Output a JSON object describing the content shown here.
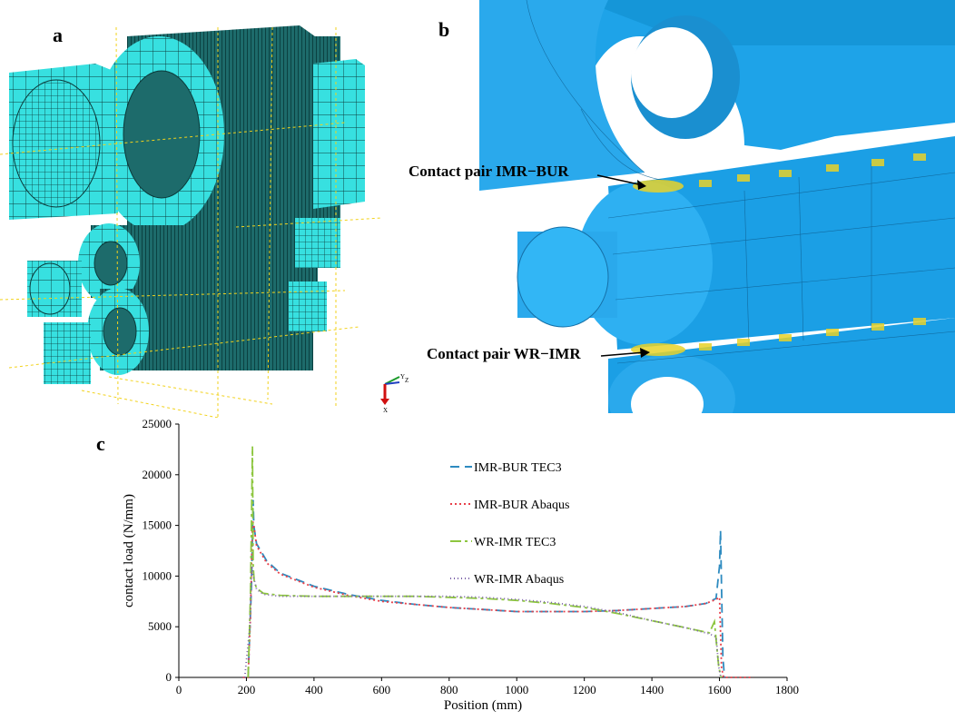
{
  "panels": {
    "a": {
      "label": "a"
    },
    "b": {
      "label": "b",
      "annotations": [
        "Contact pair IMR−BUR",
        "Contact pair WR−IMR"
      ]
    },
    "c": {
      "label": "c"
    }
  },
  "triad": {
    "y": "Y",
    "z": "Z",
    "x": "X"
  },
  "chart_data": {
    "type": "line",
    "title": "",
    "xlabel": "Position (mm)",
    "ylabel": "contact load  (N/mm)",
    "xlim": [
      0,
      1800
    ],
    "ylim": [
      0,
      25000
    ],
    "xticks": [
      0,
      200,
      400,
      600,
      800,
      1000,
      1200,
      1400,
      1600,
      1800
    ],
    "yticks": [
      0,
      5000,
      10000,
      15000,
      20000,
      25000
    ],
    "grid": false,
    "legend_position": "top-center",
    "series": [
      {
        "name": "IMR-BUR TEC3",
        "color": "#2e8bc0",
        "dash": "10,6",
        "x": [
          205,
          215,
          220,
          222,
          230,
          260,
          300,
          400,
          500,
          600,
          700,
          800,
          900,
          1000,
          1100,
          1200,
          1300,
          1400,
          1500,
          1560,
          1590,
          1600,
          1603,
          1606,
          1610,
          1615
        ],
        "y": [
          0,
          9000,
          17500,
          15000,
          13200,
          11500,
          10300,
          9000,
          8200,
          7600,
          7200,
          6900,
          6700,
          6500,
          6500,
          6500,
          6600,
          6800,
          7000,
          7300,
          7800,
          11000,
          14500,
          9000,
          2000,
          0
        ]
      },
      {
        "name": "IMR-BUR Abaqus",
        "color": "#e8404a",
        "dash": "2,3",
        "x": [
          190,
          205,
          212,
          218,
          222,
          230,
          260,
          300,
          400,
          500,
          600,
          700,
          800,
          900,
          1000,
          1100,
          1200,
          1300,
          1400,
          1500,
          1560,
          1590,
          1600,
          1606,
          1612,
          1650,
          1700
        ],
        "y": [
          0,
          0,
          6000,
          15500,
          15000,
          13000,
          11300,
          10200,
          8900,
          8100,
          7500,
          7200,
          6900,
          6700,
          6500,
          6500,
          6500,
          6600,
          6800,
          7000,
          7300,
          7700,
          7900,
          1000,
          0,
          0,
          0
        ]
      },
      {
        "name": "WR-IMR TEC3",
        "color": "#8dc63f",
        "dash": "12,4,3,4",
        "x": [
          205,
          212,
          218,
          220,
          223,
          230,
          250,
          300,
          400,
          500,
          600,
          700,
          800,
          900,
          1000,
          1100,
          1200,
          1300,
          1400,
          1500,
          1570,
          1585,
          1592,
          1598,
          1605
        ],
        "y": [
          0,
          8000,
          22800,
          11000,
          9500,
          8800,
          8300,
          8100,
          8000,
          8000,
          8000,
          8000,
          7900,
          7800,
          7600,
          7300,
          6900,
          6300,
          5600,
          4900,
          4400,
          5500,
          3000,
          1000,
          0
        ]
      },
      {
        "name": "WR-IMR Abaqus",
        "color": "#7b62a8",
        "dash": "1,3",
        "x": [
          195,
          210,
          216,
          222,
          230,
          250,
          300,
          400,
          500,
          600,
          700,
          800,
          900,
          1000,
          1100,
          1200,
          1300,
          1400,
          1500,
          1570,
          1590,
          1598,
          1604
        ],
        "y": [
          0,
          5000,
          11000,
          9800,
          8700,
          8200,
          8000,
          8000,
          8000,
          8000,
          8000,
          8000,
          7900,
          7700,
          7400,
          7000,
          6400,
          5600,
          4900,
          4300,
          4000,
          1000,
          0
        ]
      }
    ]
  }
}
